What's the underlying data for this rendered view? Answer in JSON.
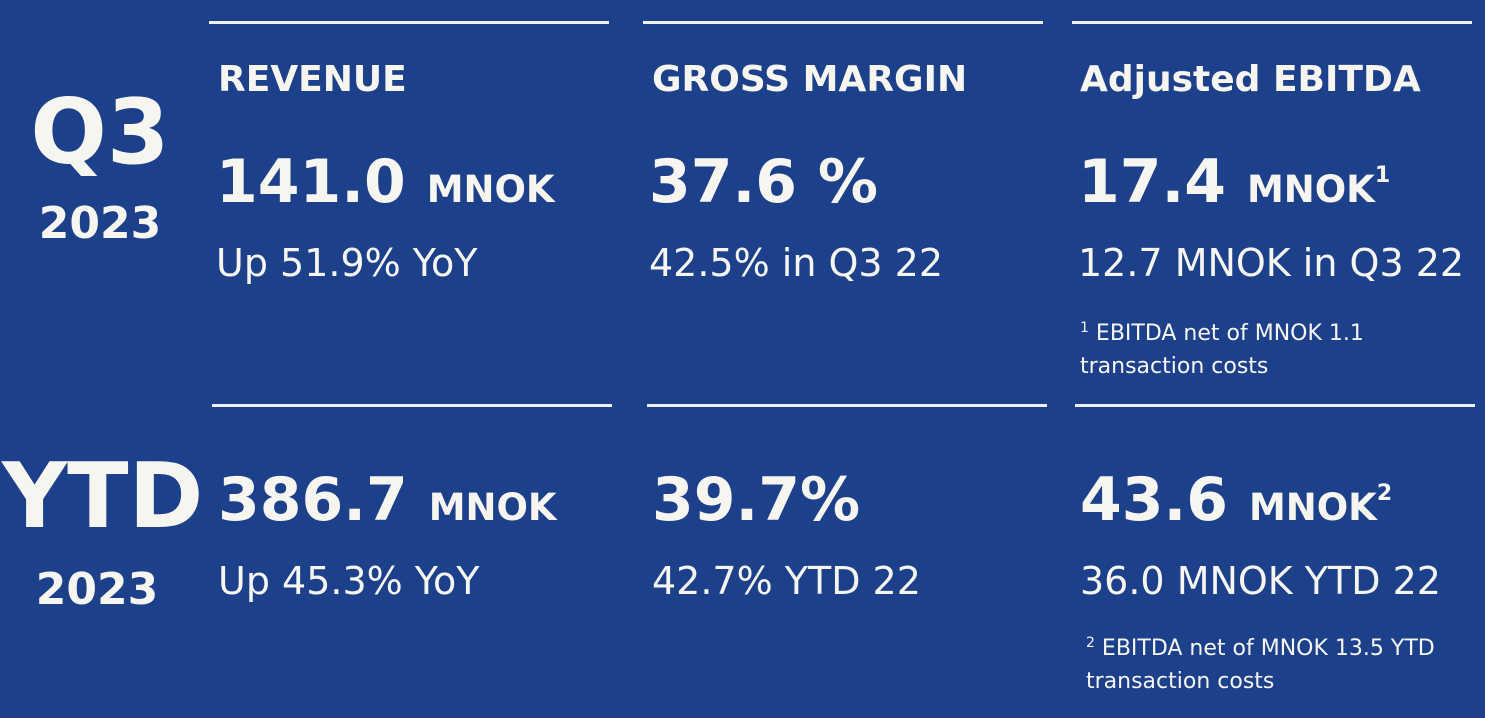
{
  "periods": {
    "q3": {
      "label": "Q3",
      "year": "2023"
    },
    "ytd": {
      "label": "YTD",
      "year": "2023"
    }
  },
  "headers": {
    "revenue": "REVENUE",
    "gross_margin": "GROSS MARGIN",
    "ebitda": "Adjusted EBITDA"
  },
  "q3": {
    "revenue": {
      "value": "141.0",
      "unit": "MNOK",
      "sub": "Up 51.9% YoY"
    },
    "gross_margin": {
      "value": "37.6 %",
      "sub": "42.5% in Q3 22"
    },
    "ebitda": {
      "value": "17.4",
      "unit": "MNOK",
      "sup": "1",
      "sub": "12.7 MNOK in Q3 22",
      "note_sup": "1",
      "note_text": " EBITDA net of MNOK 1.1 transaction costs"
    }
  },
  "ytd": {
    "revenue": {
      "value": "386.7",
      "unit": "MNOK",
      "sub": "Up 45.3% YoY"
    },
    "gross_margin": {
      "value": "39.7%",
      "sub": "42.7% YTD 22"
    },
    "ebitda": {
      "value": "43.6",
      "unit": "MNOK",
      "sup": "2",
      "sub": "36.0 MNOK YTD 22",
      "note_sup": "2",
      "note_text": " EBITDA net of MNOK 13.5  YTD transaction costs"
    }
  }
}
